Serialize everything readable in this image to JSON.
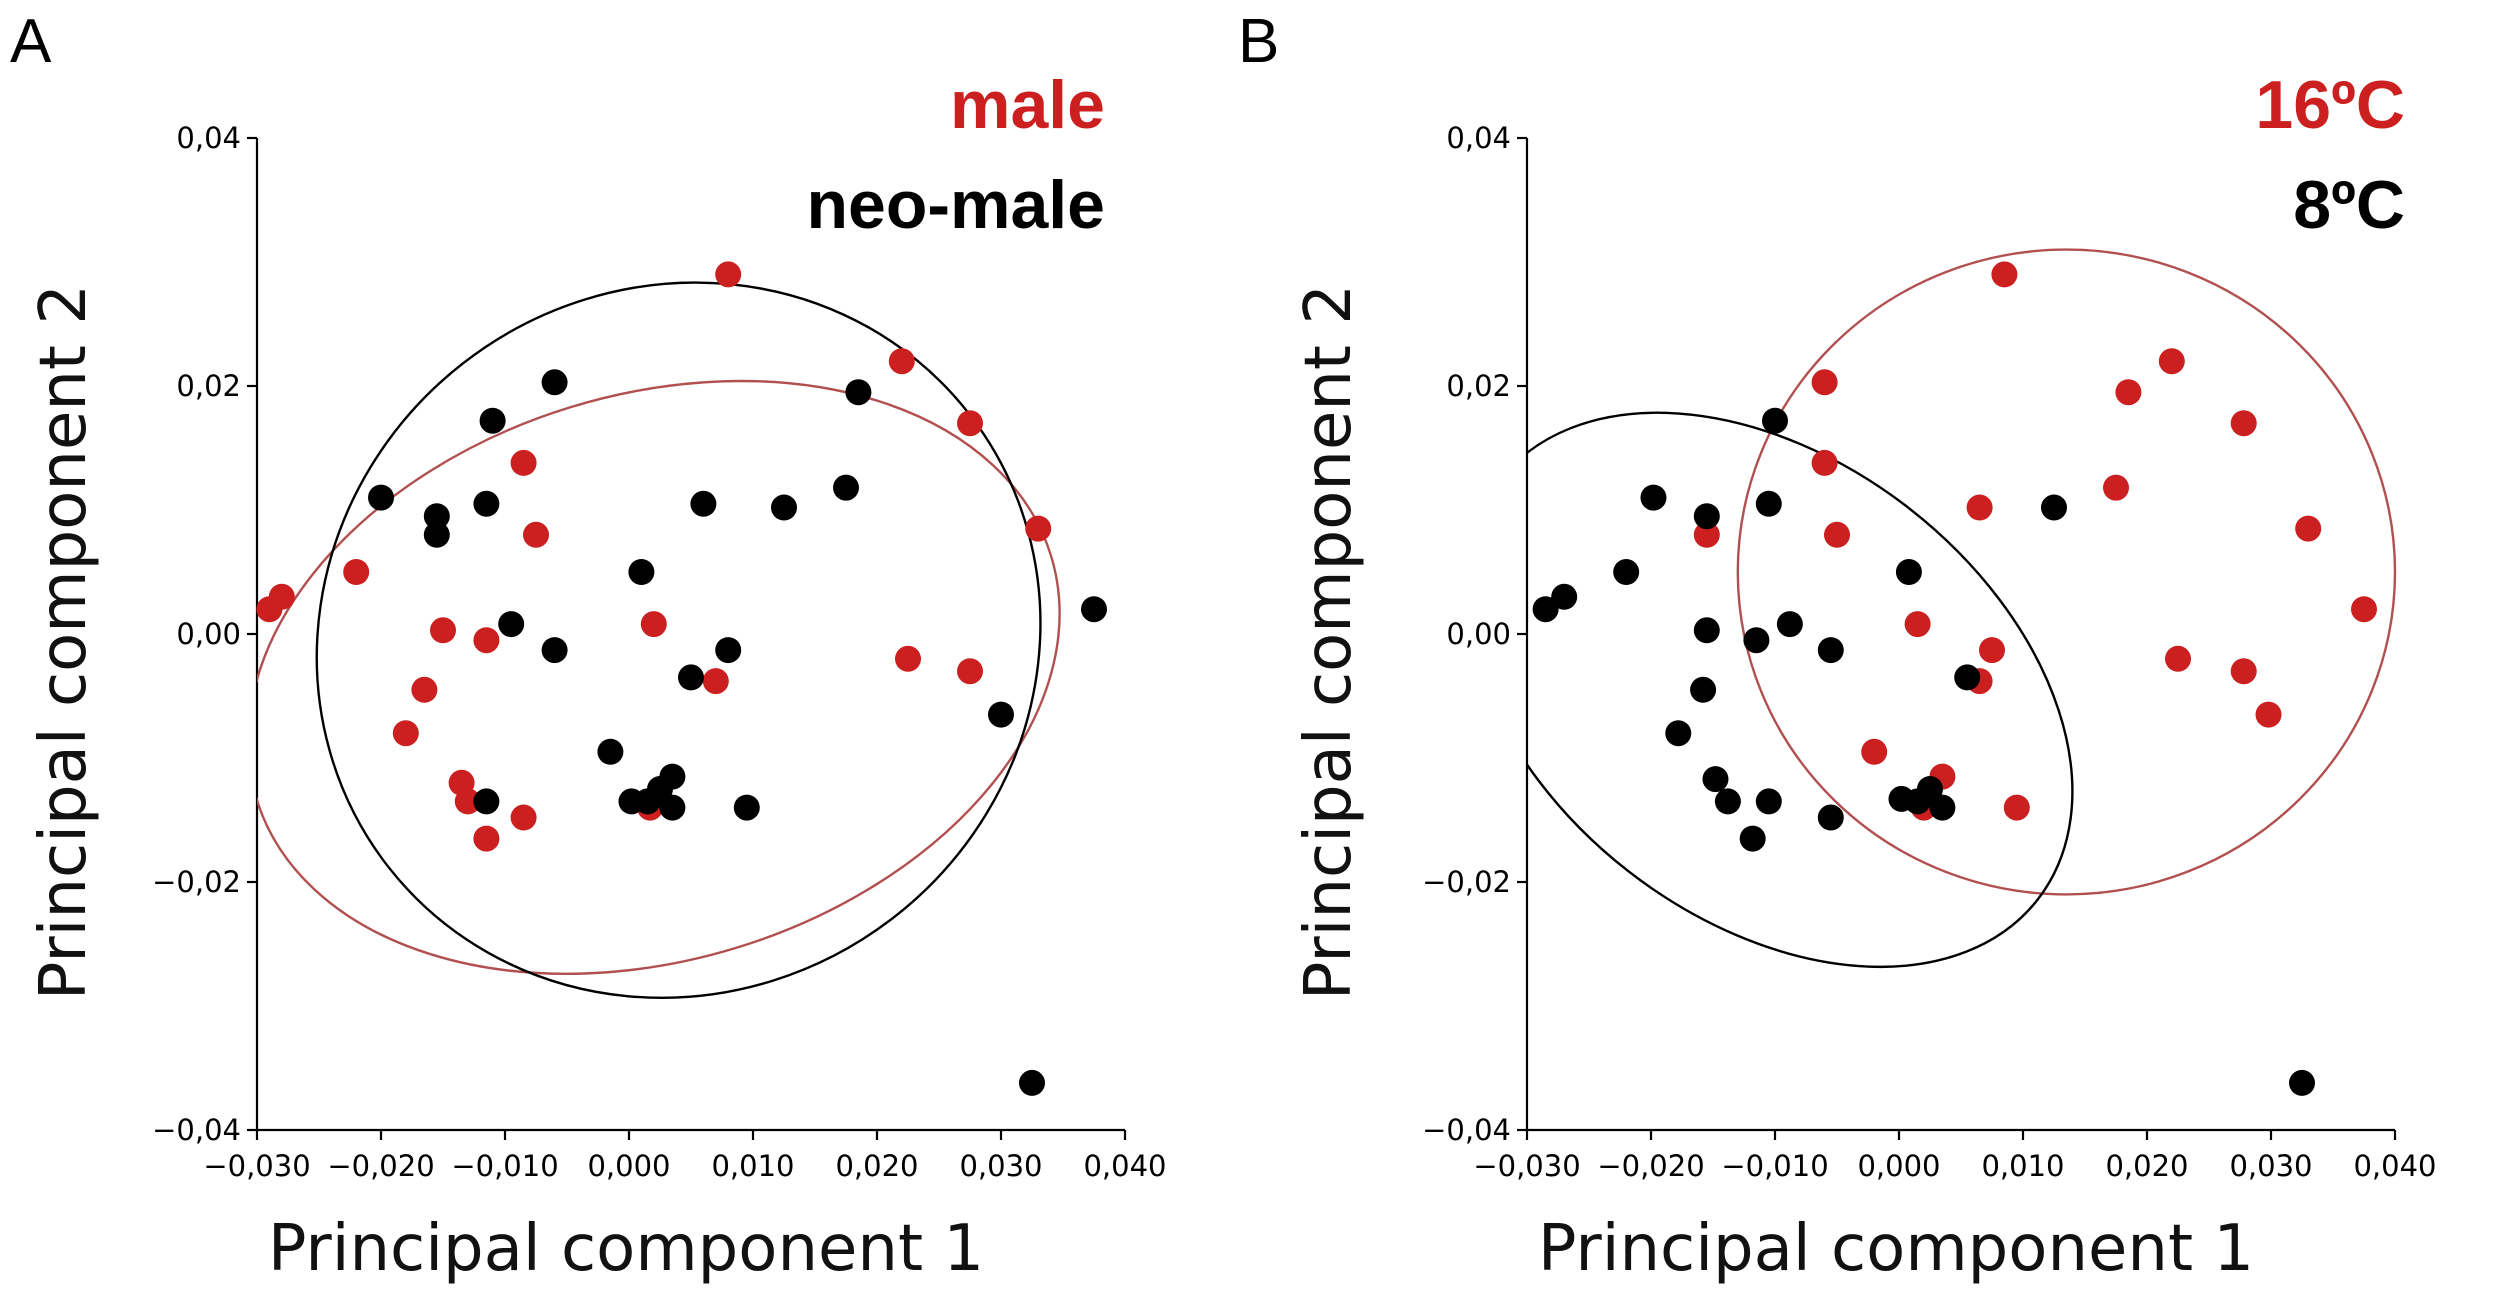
{
  "chart_data": [
    {
      "panel": "A",
      "type": "scatter",
      "xlabel": "Principal component 1",
      "ylabel": "Principal component 2",
      "xlim": [
        -0.03,
        0.04
      ],
      "ylim": [
        -0.04,
        0.04
      ],
      "x_ticks": [
        "−0,030",
        "−0,020",
        "−0,010",
        "0,000",
        "0,010",
        "0,020",
        "0,030",
        "0,040"
      ],
      "y_ticks": [
        "−0,04",
        "−0,02",
        "0,00",
        "0,02",
        "0,04"
      ],
      "legend_position": "top-right",
      "series": [
        {
          "name": "male",
          "color": "#cc1f1f",
          "points": [
            [
              -0.029,
              0.002
            ],
            [
              -0.028,
              0.003
            ],
            [
              -0.022,
              0.005
            ],
            [
              -0.018,
              -0.008
            ],
            [
              -0.0165,
              -0.0045
            ],
            [
              -0.015,
              0.0003
            ],
            [
              -0.0135,
              -0.012
            ],
            [
              -0.013,
              -0.0135
            ],
            [
              -0.0115,
              -0.0165
            ],
            [
              -0.0115,
              -0.0005
            ],
            [
              -0.0085,
              -0.0148
            ],
            [
              -0.0085,
              0.0138
            ],
            [
              -0.0075,
              0.008
            ],
            [
              0.002,
              0.0008
            ],
            [
              0.0017,
              -0.014
            ],
            [
              0.007,
              -0.0038
            ],
            [
              0.008,
              0.029
            ],
            [
              0.022,
              0.022
            ],
            [
              0.0225,
              -0.002
            ],
            [
              0.0275,
              0.017
            ],
            [
              0.0275,
              -0.003
            ],
            [
              0.033,
              0.0085
            ]
          ]
        },
        {
          "name": "neo-male",
          "color": "#000000",
          "points": [
            [
              -0.02,
              0.011
            ],
            [
              -0.0155,
              0.0095
            ],
            [
              -0.0155,
              0.008
            ],
            [
              -0.0115,
              0.0105
            ],
            [
              -0.011,
              0.0172
            ],
            [
              -0.0115,
              -0.0135
            ],
            [
              -0.0095,
              0.0008
            ],
            [
              -0.006,
              0.0203
            ],
            [
              -0.006,
              -0.0013
            ],
            [
              -0.0015,
              -0.0095
            ],
            [
              0.0002,
              -0.0135
            ],
            [
              0.001,
              0.005
            ],
            [
              0.0015,
              -0.0135
            ],
            [
              0.0025,
              -0.0125
            ],
            [
              0.0035,
              -0.0115
            ],
            [
              0.0035,
              -0.014
            ],
            [
              0.005,
              -0.0035
            ],
            [
              0.006,
              0.0105
            ],
            [
              0.008,
              -0.0013
            ],
            [
              0.0095,
              -0.014
            ],
            [
              0.0125,
              0.0102
            ],
            [
              0.0175,
              0.0118
            ],
            [
              0.0185,
              0.0195
            ],
            [
              0.03,
              -0.0065
            ],
            [
              0.0325,
              -0.0362
            ],
            [
              0.0375,
              0.002
            ]
          ]
        }
      ],
      "ellipses": [
        {
          "series": "male",
          "color": "#b25050",
          "center": [
            0.002,
            -0.0035
          ],
          "rx": 0.0335,
          "ry": 0.0228,
          "rotation_deg": -17
        },
        {
          "series": "neo-male",
          "color": "#000000",
          "center": [
            0.004,
            -0.0005
          ],
          "rx": 0.0283,
          "ry": 0.0297,
          "rotation_deg": 52
        }
      ]
    },
    {
      "panel": "B",
      "type": "scatter",
      "xlabel": "Principal component 1",
      "ylabel": "Principal component 2",
      "xlim": [
        -0.03,
        0.04
      ],
      "ylim": [
        -0.04,
        0.04
      ],
      "x_ticks": [
        "−0,030",
        "−0,020",
        "−0,010",
        "0,000",
        "0,010",
        "0,020",
        "0,030",
        "0,040"
      ],
      "y_ticks": [
        "−0,04",
        "−0,02",
        "0,00",
        "0,02",
        "0,04"
      ],
      "legend_position": "top-right",
      "series": [
        {
          "name": "16ºC",
          "color": "#cc1f1f",
          "points": [
            [
              -0.0155,
              0.008
            ],
            [
              -0.006,
              0.0203
            ],
            [
              -0.006,
              0.0138
            ],
            [
              -0.005,
              0.008
            ],
            [
              -0.002,
              -0.0095
            ],
            [
              0.0015,
              0.0008
            ],
            [
              0.002,
              -0.014
            ],
            [
              0.0035,
              -0.0115
            ],
            [
              0.0065,
              -0.0038
            ],
            [
              0.0065,
              0.0102
            ],
            [
              0.0075,
              -0.0013
            ],
            [
              0.0085,
              0.029
            ],
            [
              0.0095,
              -0.014
            ],
            [
              0.0175,
              0.0118
            ],
            [
              0.0185,
              0.0195
            ],
            [
              0.022,
              0.022
            ],
            [
              0.0225,
              -0.002
            ],
            [
              0.0278,
              0.017
            ],
            [
              0.0278,
              -0.003
            ],
            [
              0.0298,
              -0.0065
            ],
            [
              0.033,
              0.0085
            ],
            [
              0.0375,
              0.002
            ]
          ]
        },
        {
          "name": "8ºC",
          "color": "#000000",
          "points": [
            [
              -0.0285,
              0.002
            ],
            [
              -0.027,
              0.003
            ],
            [
              -0.022,
              0.005
            ],
            [
              -0.0198,
              0.011
            ],
            [
              -0.0178,
              -0.008
            ],
            [
              -0.0155,
              0.0095
            ],
            [
              -0.0155,
              0.0003
            ],
            [
              -0.0158,
              -0.0045
            ],
            [
              -0.0148,
              -0.0117
            ],
            [
              -0.0138,
              -0.0135
            ],
            [
              -0.0118,
              -0.0165
            ],
            [
              -0.0115,
              -0.0005
            ],
            [
              -0.0105,
              0.0105
            ],
            [
              -0.01,
              0.0172
            ],
            [
              -0.0105,
              -0.0135
            ],
            [
              -0.0088,
              0.0008
            ],
            [
              -0.0055,
              -0.0013
            ],
            [
              -0.0055,
              -0.0148
            ],
            [
              0.0008,
              0.005
            ],
            [
              0.0002,
              -0.0133
            ],
            [
              0.0015,
              -0.0135
            ],
            [
              0.0025,
              -0.0125
            ],
            [
              0.0035,
              -0.014
            ],
            [
              0.0055,
              -0.0035
            ],
            [
              0.0125,
              0.0102
            ],
            [
              0.0325,
              -0.0362
            ]
          ]
        }
      ],
      "ellipses": [
        {
          "series": "16ºC",
          "color": "#b25050",
          "center": [
            0.0135,
            0.005
          ],
          "rx": 0.0265,
          "ry": 0.026,
          "rotation_deg": 0
        },
        {
          "series": "8ºC",
          "color": "#000000",
          "center": [
            -0.0105,
            -0.0045
          ],
          "rx": 0.0275,
          "ry": 0.0185,
          "rotation_deg": 38
        }
      ]
    }
  ]
}
